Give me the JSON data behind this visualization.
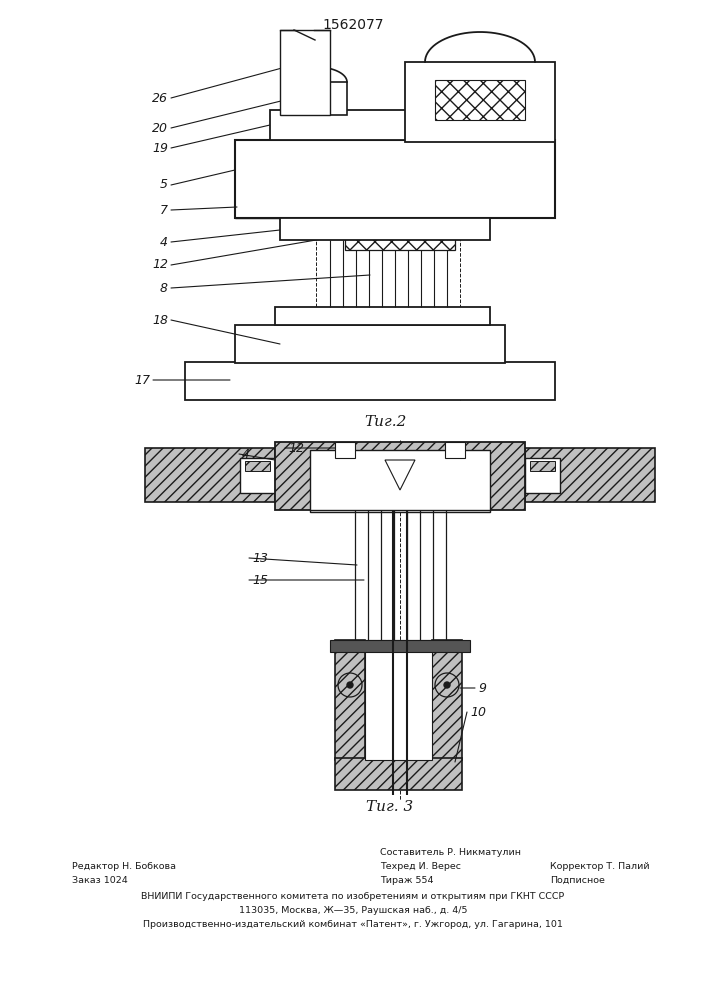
{
  "title": "1562077",
  "fig2_label": "Τиг.2",
  "fig3_label": "Τиг. 3",
  "bg_color": "#ffffff",
  "line_color": "#1a1a1a",
  "footer_col1_line1": "Редактор Н. Бобкова",
  "footer_col1_line2": "Заказ 1024",
  "footer_col2_line0": "Составитель Р. Никматулин",
  "footer_col2_line1": "Техред И. Верес",
  "footer_col2_line2": "Тираж 554",
  "footer_col3_line1": "Корректор Т. Палий",
  "footer_col3_line2": "Подписное",
  "footer_vniip1": "ВНИИПИ Государственного комитета по изобретениям и открытиям при ГКНТ СССР",
  "footer_vniip2": "113035, Москва, Ж—35, Раушская наб., д. 4/5",
  "footer_vniip3": "Производственно-издательский комбинат «Патент», г. Ужгород, ул. Гагарина, 101"
}
